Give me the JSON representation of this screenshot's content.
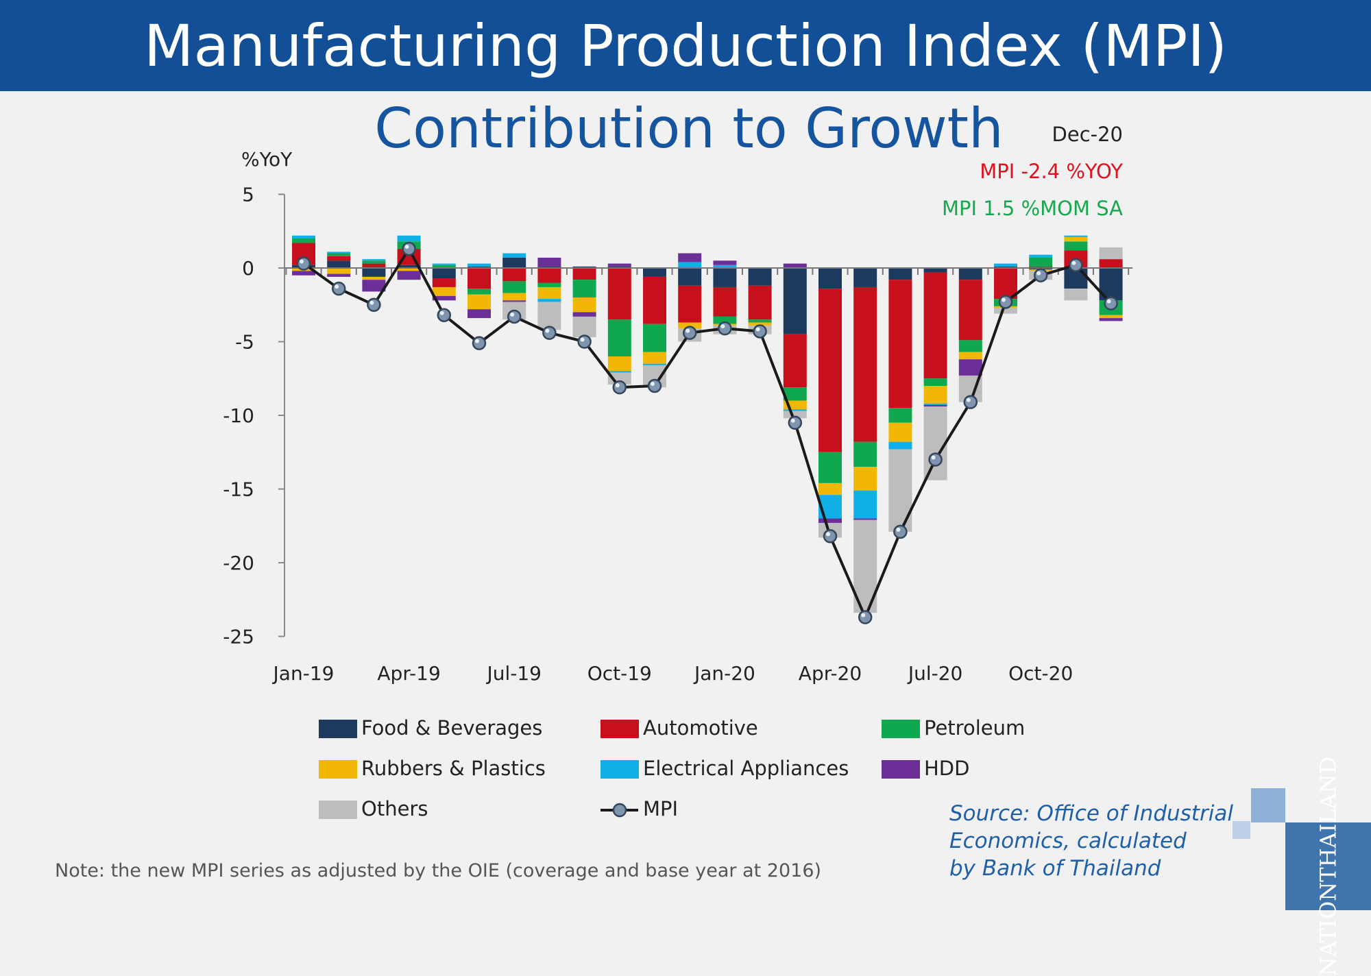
{
  "header": {
    "title": "Manufacturing Production Index (MPI)"
  },
  "subtitle": "Contribution to Growth",
  "annotations": {
    "date": "Dec-20",
    "yoy": "MPI -2.4 %YOY",
    "mom": "MPI 1.5 %MOM SA"
  },
  "colors": {
    "food": "#1b3a5e",
    "auto": "#c8101c",
    "petro": "#10a84f",
    "rubber": "#f2b705",
    "elec": "#0fb0e8",
    "hdd": "#6c2f98",
    "others": "#bdbdbd",
    "line": "#1a1a1a",
    "marker": "#7f95ad",
    "yoy": "#e0111e",
    "mom": "#17a84f"
  },
  "chart_data": {
    "type": "bar",
    "stacked": true,
    "ylabel": "%YoY",
    "ylim": [
      -25,
      5
    ],
    "yticks": [
      5,
      0,
      -5,
      -10,
      -15,
      -20,
      -25
    ],
    "x_tick_labels": [
      "Jan-19",
      "Apr-19",
      "Jul-19",
      "Oct-19",
      "Jan-20",
      "Apr-20",
      "Jul-20",
      "Oct-20"
    ],
    "x_tick_index": [
      0,
      3,
      6,
      9,
      12,
      15,
      18,
      21
    ],
    "categories": [
      "Jan-19",
      "Feb-19",
      "Mar-19",
      "Apr-19",
      "May-19",
      "Jun-19",
      "Jul-19",
      "Aug-19",
      "Sep-19",
      "Oct-19",
      "Nov-19",
      "Dec-19",
      "Jan-20",
      "Feb-20",
      "Mar-20",
      "Apr-20",
      "May-20",
      "Jun-20",
      "Jul-20",
      "Aug-20",
      "Sep-20",
      "Oct-20",
      "Nov-20",
      "Dec-20"
    ],
    "series": [
      {
        "key": "food",
        "name": "Food & Beverages",
        "values": [
          0.2,
          0.5,
          -0.6,
          0.2,
          -0.7,
          0.1,
          0.7,
          0.1,
          0.1,
          0.1,
          -0.6,
          -1.2,
          -1.3,
          -1.2,
          -4.5,
          -1.4,
          -1.3,
          -0.8,
          -0.3,
          -0.8,
          0.1,
          -0.1,
          -1.4,
          -2.2
        ]
      },
      {
        "key": "auto",
        "name": "Automotive",
        "values": [
          1.5,
          0.3,
          0.3,
          1.1,
          -0.6,
          -1.4,
          -0.9,
          -1.0,
          -0.8,
          -3.5,
          -3.2,
          -2.5,
          -2.0,
          -2.3,
          -3.6,
          -11.1,
          -10.5,
          -8.7,
          -7.2,
          -4.1,
          -2.1,
          0.1,
          1.2,
          0.6
        ]
      },
      {
        "key": "petro",
        "name": "Petroleum",
        "values": [
          0.3,
          0.2,
          0.2,
          0.5,
          0.2,
          -0.4,
          -0.8,
          -0.3,
          -1.2,
          -2.5,
          -1.9,
          0.0,
          -0.5,
          -0.2,
          -0.9,
          -2.1,
          -1.7,
          -1.0,
          -0.5,
          -0.8,
          -0.5,
          0.6,
          0.6,
          -1.0
        ]
      },
      {
        "key": "rubber",
        "name": "Rubbers & Plastics",
        "values": [
          -0.2,
          -0.4,
          -0.2,
          -0.2,
          -0.6,
          -1.0,
          -0.5,
          -0.8,
          -1.0,
          -1.0,
          -0.8,
          -0.4,
          -0.1,
          -0.2,
          -0.6,
          -0.8,
          -1.6,
          -1.3,
          -1.2,
          -0.5,
          -0.1,
          -0.1,
          0.3,
          -0.2
        ]
      },
      {
        "key": "elec",
        "name": "Electrical Appliances",
        "values": [
          0.2,
          0.1,
          0.1,
          0.4,
          0.1,
          0.2,
          0.3,
          -0.2,
          0.0,
          -0.1,
          -0.1,
          0.4,
          0.2,
          0.0,
          -0.1,
          -1.6,
          -1.9,
          -0.5,
          -0.1,
          0.0,
          0.2,
          0.2,
          0.1,
          0.0
        ]
      },
      {
        "key": "hdd",
        "name": "HDD",
        "values": [
          -0.3,
          -0.2,
          -0.8,
          -0.6,
          -0.3,
          -0.6,
          -0.1,
          0.6,
          -0.3,
          0.2,
          0.0,
          0.6,
          0.3,
          0.0,
          0.3,
          -0.3,
          -0.1,
          0.0,
          -0.1,
          -1.1,
          0.0,
          0.0,
          0.0,
          -0.2
        ]
      },
      {
        "key": "others",
        "name": "Others",
        "values": [
          0.0,
          0.0,
          0.0,
          0.0,
          0.0,
          0.0,
          -1.2,
          -1.9,
          -1.4,
          -0.8,
          -1.5,
          -0.9,
          -0.6,
          -0.6,
          -0.5,
          -1.0,
          -6.3,
          -5.6,
          -5.0,
          -1.8,
          -0.4,
          -0.6,
          -0.8,
          0.8
        ]
      }
    ],
    "line": {
      "name": "MPI",
      "values": [
        0.3,
        -1.4,
        -2.5,
        1.3,
        -3.2,
        -5.1,
        -3.3,
        -4.4,
        -5.0,
        -8.1,
        -8.0,
        -4.4,
        -4.1,
        -4.3,
        -10.5,
        -18.2,
        -23.7,
        -17.9,
        -13.0,
        -9.1,
        -2.3,
        -0.5,
        0.2,
        -2.4
      ]
    },
    "legend": [
      {
        "key": "food",
        "label": "Food & Beverages"
      },
      {
        "key": "auto",
        "label": "Automotive"
      },
      {
        "key": "petro",
        "label": "Petroleum"
      },
      {
        "key": "rubber",
        "label": "Rubbers & Plastics"
      },
      {
        "key": "elec",
        "label": "Electrical Appliances"
      },
      {
        "key": "hdd",
        "label": "HDD"
      },
      {
        "key": "others",
        "label": "Others"
      },
      {
        "key": "mpi",
        "label": "MPI"
      }
    ]
  },
  "source": "Source: Office of Industrial\nEconomics, calculated\nby Bank of Thailand",
  "note": "Note: the new MPI series as adjusted by the OIE (coverage and base year at 2016)",
  "brand": "NATIONTHAILAND"
}
